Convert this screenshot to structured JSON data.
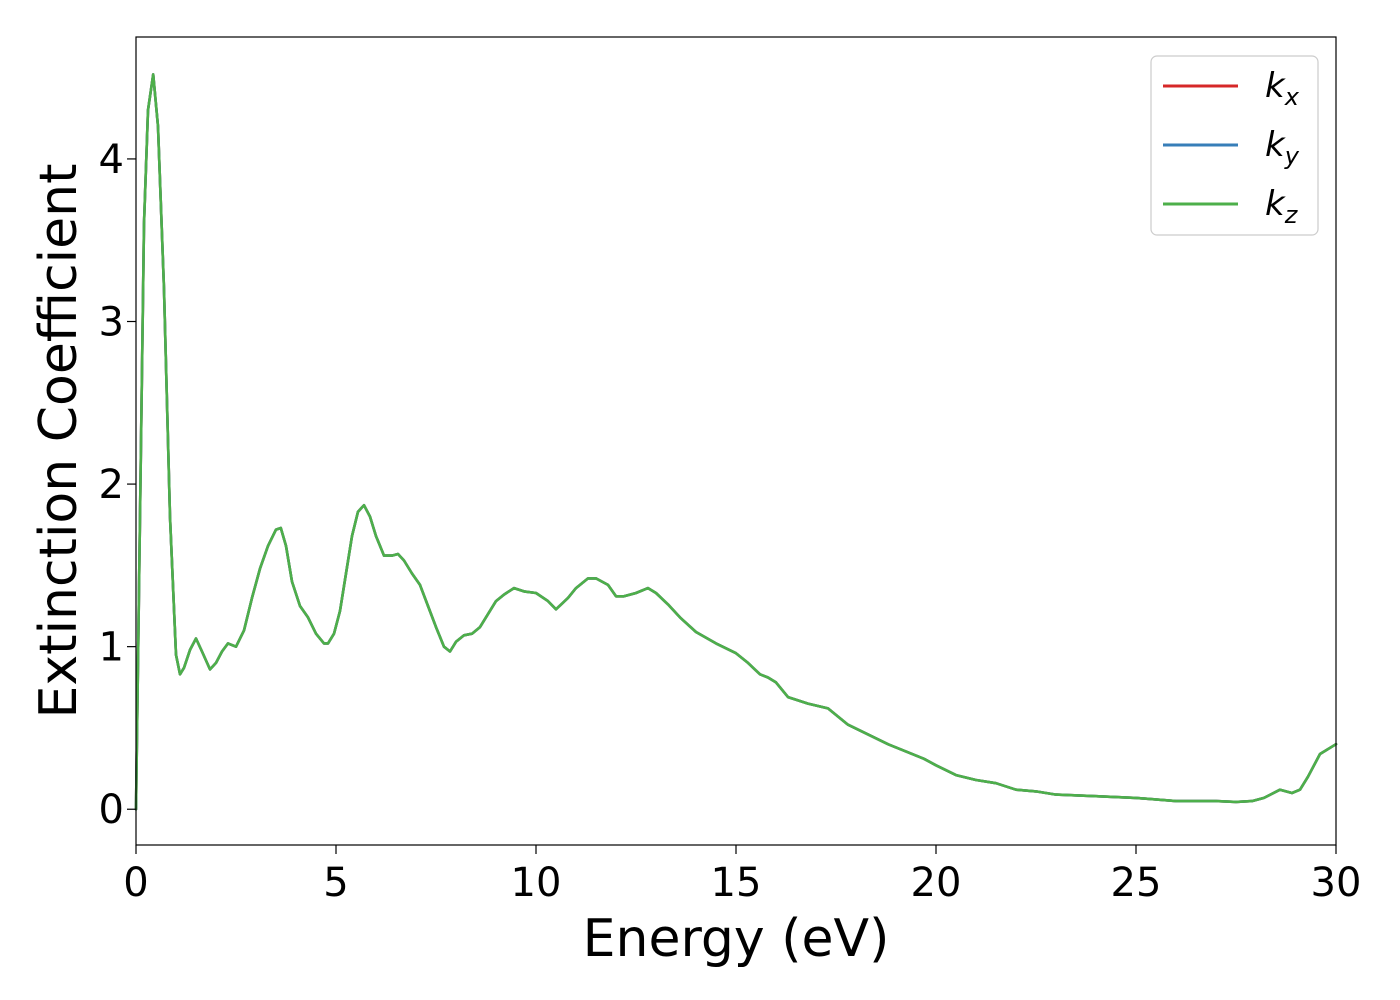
{
  "chart_data": {
    "type": "line",
    "title": "",
    "xlabel": "Energy (eV)",
    "ylabel": "Extinction Coefficient",
    "xlim": [
      0,
      30
    ],
    "ylim": [
      -0.22,
      4.75
    ],
    "xticks": [
      0,
      5,
      10,
      15,
      20,
      25,
      30
    ],
    "yticks": [
      0,
      1,
      2,
      3,
      4
    ],
    "xtick_labels": [
      "0",
      "5",
      "10",
      "15",
      "20",
      "25",
      "30"
    ],
    "ytick_labels": [
      "0",
      "1",
      "2",
      "3",
      "4"
    ],
    "grid": false,
    "legend_position": "top-right",
    "x": [
      0,
      0.1,
      0.2,
      0.3,
      0.43,
      0.55,
      0.7,
      0.85,
      1.0,
      1.1,
      1.2,
      1.35,
      1.5,
      1.65,
      1.85,
      2.0,
      2.15,
      2.3,
      2.5,
      2.7,
      2.9,
      3.1,
      3.3,
      3.5,
      3.62,
      3.75,
      3.9,
      4.1,
      4.3,
      4.5,
      4.7,
      4.8,
      4.95,
      5.1,
      5.25,
      5.4,
      5.55,
      5.7,
      5.85,
      6.0,
      6.2,
      6.4,
      6.55,
      6.7,
      6.9,
      7.1,
      7.3,
      7.5,
      7.7,
      7.85,
      8.0,
      8.2,
      8.4,
      8.6,
      8.8,
      9.0,
      9.2,
      9.45,
      9.7,
      10.0,
      10.3,
      10.5,
      10.8,
      11.0,
      11.3,
      11.5,
      11.8,
      12.0,
      12.2,
      12.5,
      12.8,
      13.0,
      13.3,
      13.6,
      14.0,
      14.5,
      15.0,
      15.3,
      15.6,
      15.8,
      16.0,
      16.3,
      16.8,
      17.3,
      17.8,
      18.3,
      18.8,
      19.2,
      19.7,
      20.0,
      20.5,
      21.0,
      21.5,
      22.0,
      22.5,
      23.0,
      24.0,
      25.0,
      26.0,
      27.0,
      27.5,
      27.9,
      28.2,
      28.6,
      28.9,
      29.1,
      29.3,
      29.6,
      30.0
    ],
    "series": [
      {
        "name": "k_x",
        "color": "#d62728",
        "values": [
          0,
          1.8,
          3.6,
          4.3,
          4.52,
          4.2,
          3.2,
          1.8,
          0.95,
          0.83,
          0.87,
          0.98,
          1.05,
          0.97,
          0.86,
          0.9,
          0.97,
          1.02,
          1.0,
          1.1,
          1.3,
          1.48,
          1.62,
          1.72,
          1.73,
          1.62,
          1.4,
          1.25,
          1.18,
          1.08,
          1.02,
          1.02,
          1.08,
          1.22,
          1.45,
          1.68,
          1.83,
          1.87,
          1.8,
          1.68,
          1.56,
          1.56,
          1.57,
          1.53,
          1.45,
          1.38,
          1.25,
          1.12,
          1.0,
          0.97,
          1.03,
          1.07,
          1.08,
          1.12,
          1.2,
          1.28,
          1.32,
          1.36,
          1.34,
          1.33,
          1.28,
          1.23,
          1.3,
          1.36,
          1.42,
          1.42,
          1.38,
          1.31,
          1.31,
          1.33,
          1.36,
          1.33,
          1.26,
          1.18,
          1.09,
          1.02,
          0.96,
          0.9,
          0.83,
          0.81,
          0.78,
          0.69,
          0.65,
          0.62,
          0.52,
          0.46,
          0.4,
          0.36,
          0.31,
          0.27,
          0.21,
          0.18,
          0.16,
          0.12,
          0.11,
          0.09,
          0.08,
          0.07,
          0.05,
          0.05,
          0.045,
          0.05,
          0.07,
          0.12,
          0.1,
          0.12,
          0.2,
          0.34,
          0.4
        ]
      },
      {
        "name": "k_y",
        "color": "#377eb8",
        "values": [
          0,
          1.8,
          3.6,
          4.3,
          4.52,
          4.2,
          3.2,
          1.8,
          0.95,
          0.83,
          0.87,
          0.98,
          1.05,
          0.97,
          0.86,
          0.9,
          0.97,
          1.02,
          1.0,
          1.1,
          1.3,
          1.48,
          1.62,
          1.72,
          1.73,
          1.62,
          1.4,
          1.25,
          1.18,
          1.08,
          1.02,
          1.02,
          1.08,
          1.22,
          1.45,
          1.68,
          1.83,
          1.87,
          1.8,
          1.68,
          1.56,
          1.56,
          1.57,
          1.53,
          1.45,
          1.38,
          1.25,
          1.12,
          1.0,
          0.97,
          1.03,
          1.07,
          1.08,
          1.12,
          1.2,
          1.28,
          1.32,
          1.36,
          1.34,
          1.33,
          1.28,
          1.23,
          1.3,
          1.36,
          1.42,
          1.42,
          1.38,
          1.31,
          1.31,
          1.33,
          1.36,
          1.33,
          1.26,
          1.18,
          1.09,
          1.02,
          0.96,
          0.9,
          0.83,
          0.81,
          0.78,
          0.69,
          0.65,
          0.62,
          0.52,
          0.46,
          0.4,
          0.36,
          0.31,
          0.27,
          0.21,
          0.18,
          0.16,
          0.12,
          0.11,
          0.09,
          0.08,
          0.07,
          0.05,
          0.05,
          0.045,
          0.05,
          0.07,
          0.12,
          0.1,
          0.12,
          0.2,
          0.34,
          0.4
        ]
      },
      {
        "name": "k_z",
        "color": "#4daf4a",
        "values": [
          0,
          1.8,
          3.6,
          4.3,
          4.52,
          4.2,
          3.2,
          1.8,
          0.95,
          0.83,
          0.87,
          0.98,
          1.05,
          0.97,
          0.86,
          0.9,
          0.97,
          1.02,
          1.0,
          1.1,
          1.3,
          1.48,
          1.62,
          1.72,
          1.73,
          1.62,
          1.4,
          1.25,
          1.18,
          1.08,
          1.02,
          1.02,
          1.08,
          1.22,
          1.45,
          1.68,
          1.83,
          1.87,
          1.8,
          1.68,
          1.56,
          1.56,
          1.57,
          1.53,
          1.45,
          1.38,
          1.25,
          1.12,
          1.0,
          0.97,
          1.03,
          1.07,
          1.08,
          1.12,
          1.2,
          1.28,
          1.32,
          1.36,
          1.34,
          1.33,
          1.28,
          1.23,
          1.3,
          1.36,
          1.42,
          1.42,
          1.38,
          1.31,
          1.31,
          1.33,
          1.36,
          1.33,
          1.26,
          1.18,
          1.09,
          1.02,
          0.96,
          0.9,
          0.83,
          0.81,
          0.78,
          0.69,
          0.65,
          0.62,
          0.52,
          0.46,
          0.4,
          0.36,
          0.31,
          0.27,
          0.21,
          0.18,
          0.16,
          0.12,
          0.11,
          0.09,
          0.08,
          0.07,
          0.05,
          0.05,
          0.045,
          0.05,
          0.07,
          0.12,
          0.1,
          0.12,
          0.2,
          0.34,
          0.4
        ]
      }
    ],
    "legend": [
      {
        "base": "k",
        "sub": "x",
        "color": "#d62728"
      },
      {
        "base": "k",
        "sub": "y",
        "color": "#377eb8"
      },
      {
        "base": "k",
        "sub": "z",
        "color": "#4daf4a"
      }
    ]
  }
}
